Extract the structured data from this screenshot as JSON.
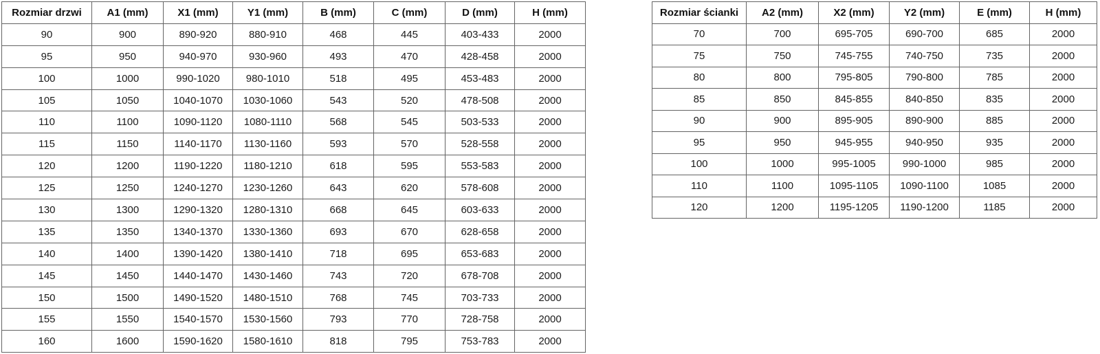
{
  "colors": {
    "background": "#ffffff",
    "table_border": "#636363",
    "text": "#1b1b1b"
  },
  "tables": [
    {
      "name": "door-sizes-table",
      "headers": [
        "Rozmiar drzwi",
        "A1 (mm)",
        "X1 (mm)",
        "Y1 (mm)",
        "B (mm)",
        "C (mm)",
        "D (mm)",
        "H (mm)"
      ],
      "rows": [
        [
          "90",
          "900",
          "890-920",
          "880-910",
          "468",
          "445",
          "403-433",
          "2000"
        ],
        [
          "95",
          "950",
          "940-970",
          "930-960",
          "493",
          "470",
          "428-458",
          "2000"
        ],
        [
          "100",
          "1000",
          "990-1020",
          "980-1010",
          "518",
          "495",
          "453-483",
          "2000"
        ],
        [
          "105",
          "1050",
          "1040-1070",
          "1030-1060",
          "543",
          "520",
          "478-508",
          "2000"
        ],
        [
          "110",
          "1100",
          "1090-1120",
          "1080-1110",
          "568",
          "545",
          "503-533",
          "2000"
        ],
        [
          "115",
          "1150",
          "1140-1170",
          "1130-1160",
          "593",
          "570",
          "528-558",
          "2000"
        ],
        [
          "120",
          "1200",
          "1190-1220",
          "1180-1210",
          "618",
          "595",
          "553-583",
          "2000"
        ],
        [
          "125",
          "1250",
          "1240-1270",
          "1230-1260",
          "643",
          "620",
          "578-608",
          "2000"
        ],
        [
          "130",
          "1300",
          "1290-1320",
          "1280-1310",
          "668",
          "645",
          "603-633",
          "2000"
        ],
        [
          "135",
          "1350",
          "1340-1370",
          "1330-1360",
          "693",
          "670",
          "628-658",
          "2000"
        ],
        [
          "140",
          "1400",
          "1390-1420",
          "1380-1410",
          "718",
          "695",
          "653-683",
          "2000"
        ],
        [
          "145",
          "1450",
          "1440-1470",
          "1430-1460",
          "743",
          "720",
          "678-708",
          "2000"
        ],
        [
          "150",
          "1500",
          "1490-1520",
          "1480-1510",
          "768",
          "745",
          "703-733",
          "2000"
        ],
        [
          "155",
          "1550",
          "1540-1570",
          "1530-1560",
          "793",
          "770",
          "728-758",
          "2000"
        ],
        [
          "160",
          "1600",
          "1590-1620",
          "1580-1610",
          "818",
          "795",
          "753-783",
          "2000"
        ]
      ]
    },
    {
      "name": "wall-sizes-table",
      "headers": [
        "Rozmiar ścianki",
        "A2 (mm)",
        "X2 (mm)",
        "Y2 (mm)",
        "E (mm)",
        "H (mm)"
      ],
      "rows": [
        [
          "70",
          "700",
          "695-705",
          "690-700",
          "685",
          "2000"
        ],
        [
          "75",
          "750",
          "745-755",
          "740-750",
          "735",
          "2000"
        ],
        [
          "80",
          "800",
          "795-805",
          "790-800",
          "785",
          "2000"
        ],
        [
          "85",
          "850",
          "845-855",
          "840-850",
          "835",
          "2000"
        ],
        [
          "90",
          "900",
          "895-905",
          "890-900",
          "885",
          "2000"
        ],
        [
          "95",
          "950",
          "945-955",
          "940-950",
          "935",
          "2000"
        ],
        [
          "100",
          "1000",
          "995-1005",
          "990-1000",
          "985",
          "2000"
        ],
        [
          "110",
          "1100",
          "1095-1105",
          "1090-1100",
          "1085",
          "2000"
        ],
        [
          "120",
          "1200",
          "1195-1205",
          "1190-1200",
          "1185",
          "2000"
        ]
      ]
    }
  ]
}
